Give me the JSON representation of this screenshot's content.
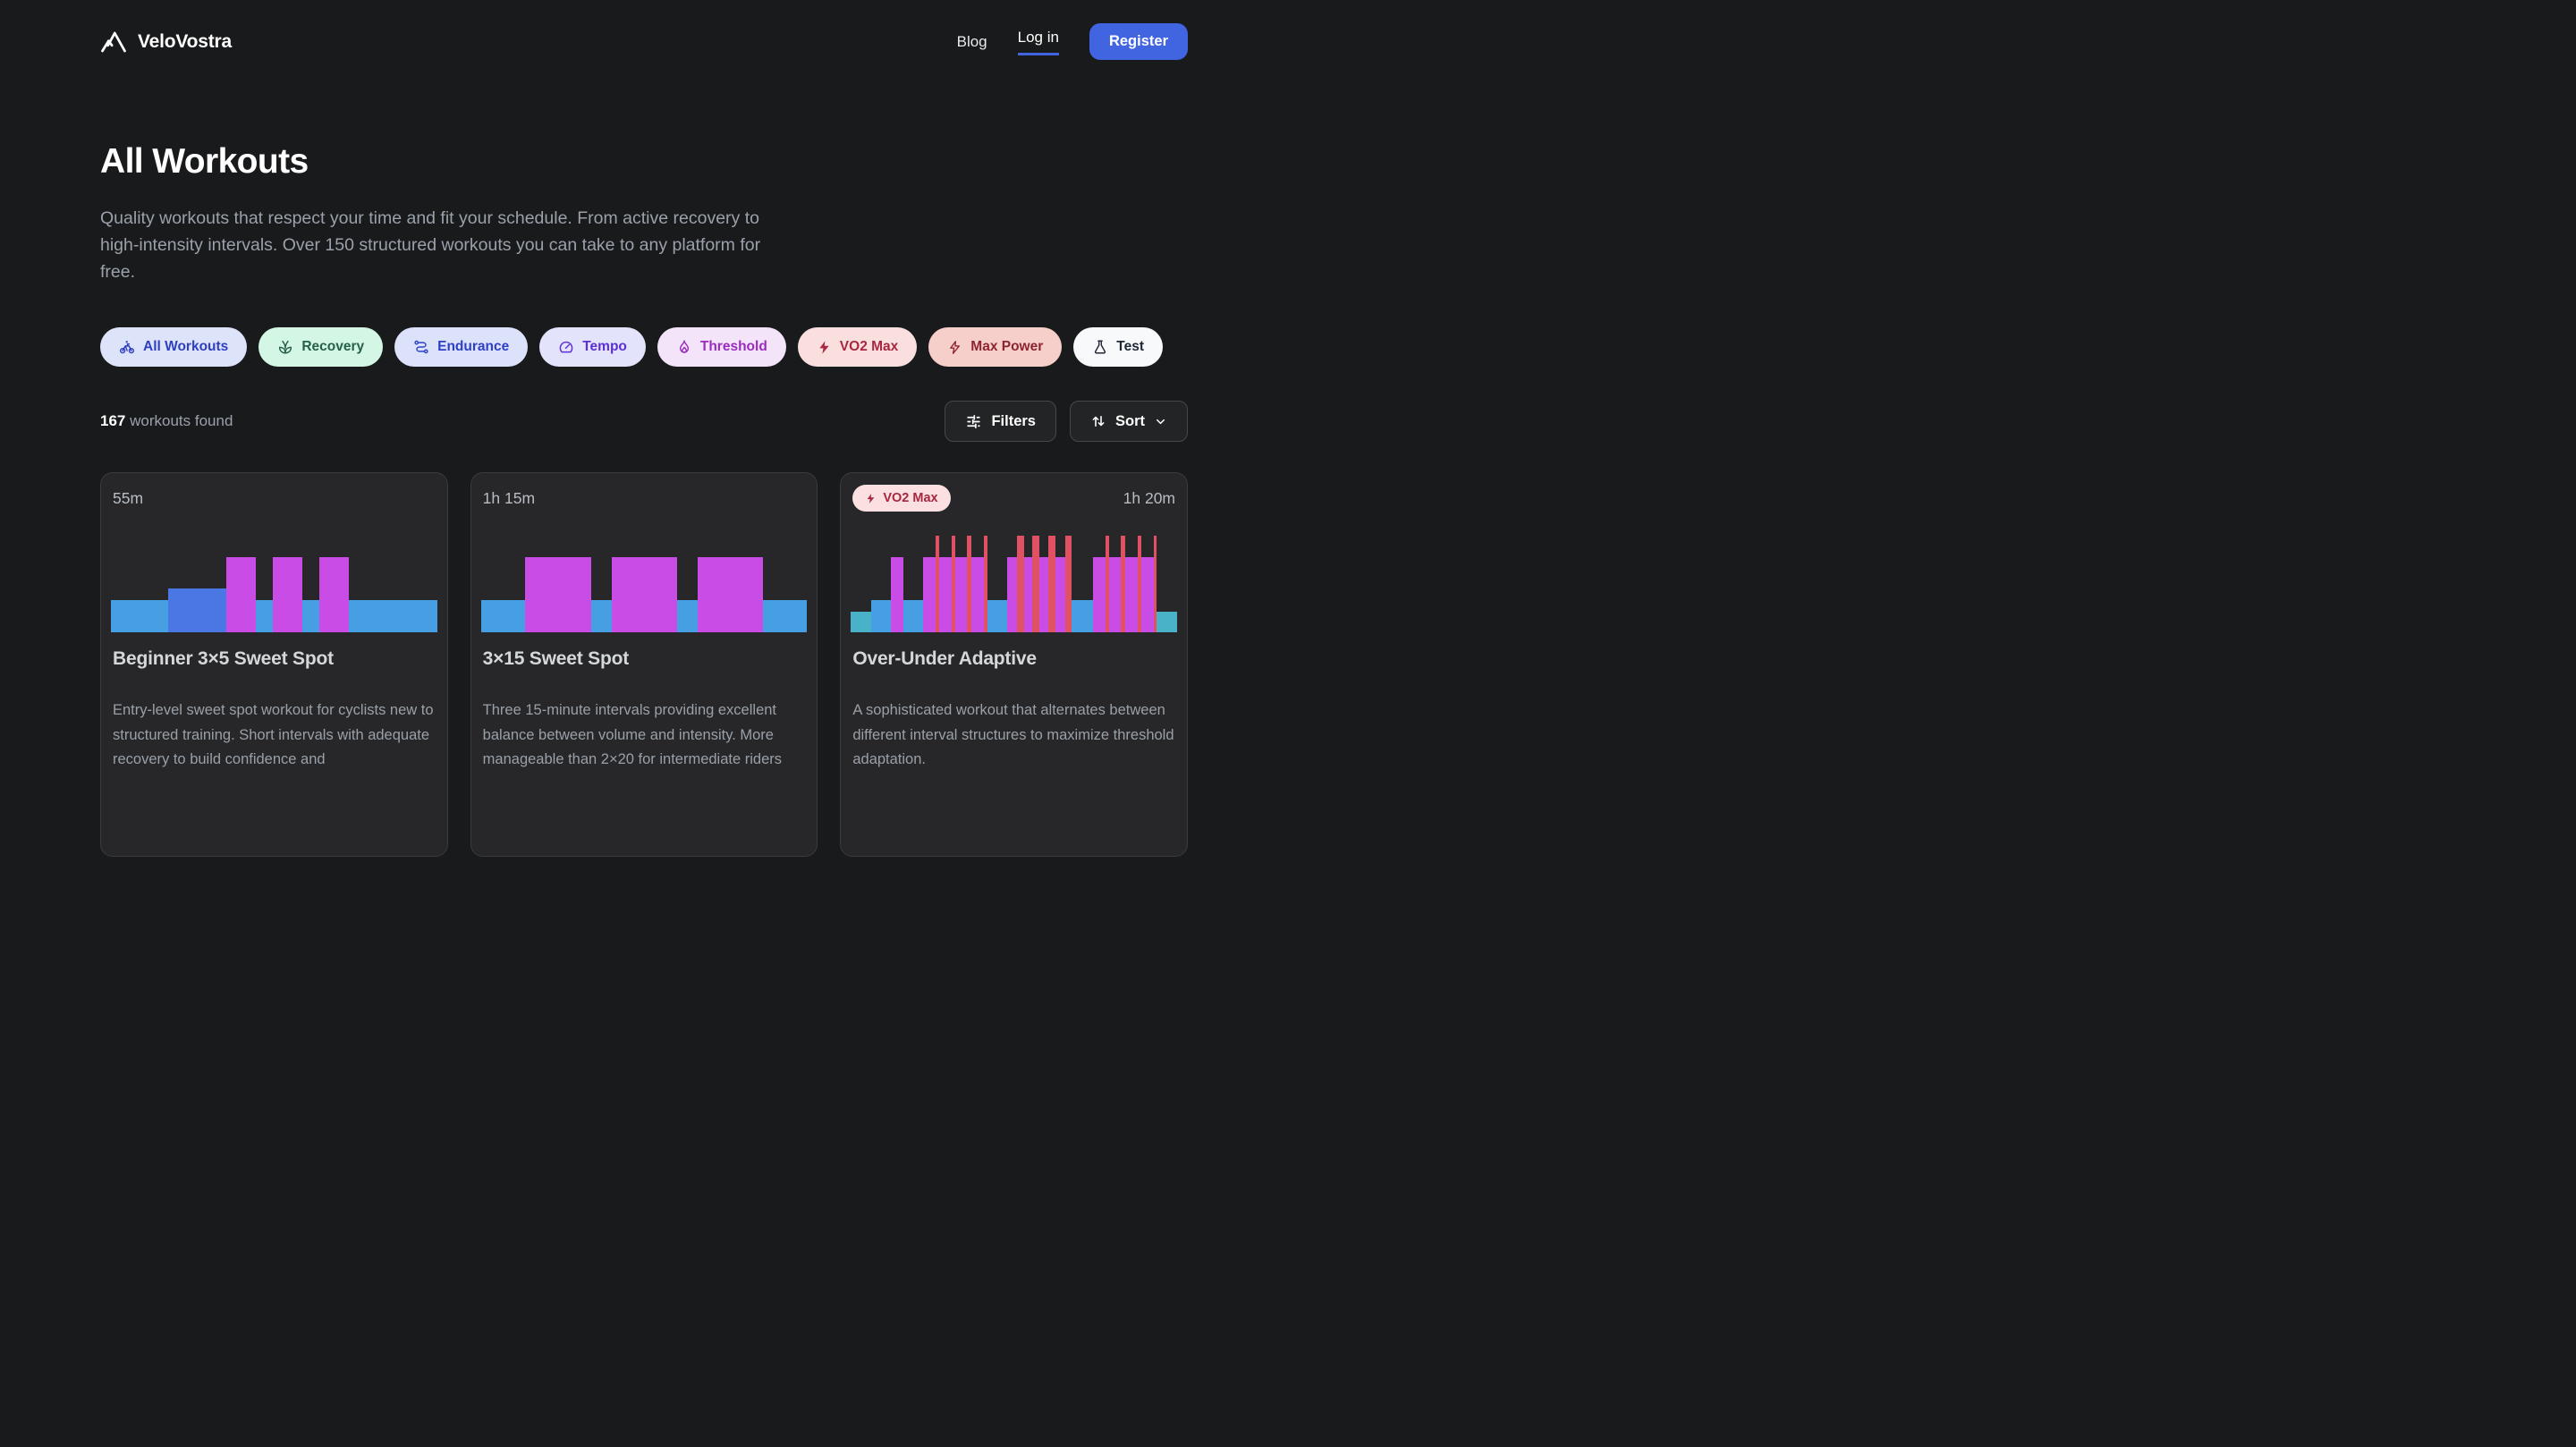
{
  "nav": {
    "brand": "VeloVostra",
    "links": [
      {
        "id": "blog",
        "label": "Blog",
        "active": false
      },
      {
        "id": "login",
        "label": "Log in",
        "active": true
      }
    ],
    "register_label": "Register"
  },
  "header": {
    "title": "All Workouts",
    "subtitle": "Quality workouts that respect your time and fit your schedule. From active recovery to high-intensity intervals. Over 150 structured workouts you can take to any platform for free."
  },
  "filter_pills": [
    {
      "id": "all-workouts",
      "label": "All Workouts",
      "icon": "bike",
      "bg": "#dde4f9",
      "fg": "#2e3fc0",
      "active": true
    },
    {
      "id": "recovery",
      "label": "Recovery",
      "icon": "leaf",
      "bg": "#d4f6e5",
      "fg": "#26604a",
      "active": false
    },
    {
      "id": "endurance",
      "label": "Endurance",
      "icon": "route",
      "bg": "#dbe2fa",
      "fg": "#2e41c6",
      "active": false
    },
    {
      "id": "tempo",
      "label": "Tempo",
      "icon": "gauge",
      "bg": "#e3e3fb",
      "fg": "#5c2fd4",
      "active": false
    },
    {
      "id": "threshold",
      "label": "Threshold",
      "icon": "flame",
      "bg": "#f3e4fa",
      "fg": "#9a2cbd",
      "active": false
    },
    {
      "id": "vo2-max",
      "label": "VO2 Max",
      "icon": "bolt",
      "bg": "#fadfdf",
      "fg": "#a82742",
      "active": false
    },
    {
      "id": "max-power",
      "label": "Max Power",
      "icon": "bolt-outline",
      "bg": "#f6cfca",
      "fg": "#8d2431",
      "active": false
    },
    {
      "id": "test",
      "label": "Test",
      "icon": "flask",
      "bg": "#f8f9fa",
      "fg": "#1f2835",
      "active": false
    }
  ],
  "results": {
    "count": "167",
    "label": "workouts found",
    "filters_label": "Filters",
    "sort_label": "Sort"
  },
  "zone_colors": {
    "z1": "#49b2c8",
    "z2": "#459fe2",
    "z3": "#4a77e4",
    "ss": "#ca4ce6",
    "vo2": "#e05163"
  },
  "cards": [
    {
      "duration": "55m",
      "badge": null,
      "title": "Beginner 3×5 Sweet Spot",
      "description": "Entry-level sweet spot workout for cyclists new to structured training. Short intervals with adequate recovery to build confidence and",
      "segments": [
        {
          "w": 63,
          "h": 33,
          "z": "z2"
        },
        {
          "w": 64,
          "h": 45,
          "z": "z3"
        },
        {
          "w": 32,
          "h": 78,
          "z": "ss"
        },
        {
          "w": 19,
          "h": 33,
          "z": "z2"
        },
        {
          "w": 32,
          "h": 78,
          "z": "ss"
        },
        {
          "w": 19,
          "h": 33,
          "z": "z2"
        },
        {
          "w": 32,
          "h": 78,
          "z": "ss"
        },
        {
          "w": 97,
          "h": 33,
          "z": "z2"
        }
      ]
    },
    {
      "duration": "1h 15m",
      "badge": null,
      "title": "3×15 Sweet Spot",
      "description": "Three 15-minute intervals providing excellent balance between volume and intensity. More manageable than 2×20 for intermediate riders",
      "segments": [
        {
          "w": 48,
          "h": 33,
          "z": "z2"
        },
        {
          "w": 72,
          "h": 78,
          "z": "ss"
        },
        {
          "w": 23,
          "h": 33,
          "z": "z2"
        },
        {
          "w": 71,
          "h": 78,
          "z": "ss"
        },
        {
          "w": 23,
          "h": 33,
          "z": "z2"
        },
        {
          "w": 71,
          "h": 78,
          "z": "ss"
        },
        {
          "w": 48,
          "h": 33,
          "z": "z2"
        }
      ]
    },
    {
      "duration": "1h 20m",
      "badge": {
        "label": "VO2 Max",
        "icon": "bolt",
        "bg": "#fbdfe1",
        "fg": "#a82740"
      },
      "title": "Over-Under Adaptive",
      "description": "A sophisticated workout that alternates between different interval structures to maximize threshold adaptation.",
      "segments": [
        {
          "w": 22,
          "h": 21,
          "z": "z1"
        },
        {
          "w": 22,
          "h": 33,
          "z": "z2"
        },
        {
          "w": 13,
          "h": 78,
          "z": "ss"
        },
        {
          "w": 22,
          "h": 33,
          "z": "z2"
        },
        {
          "w": 13,
          "h": 78,
          "z": "ss"
        },
        {
          "w": 4,
          "h": 100,
          "z": "vo2"
        },
        {
          "w": 14,
          "h": 78,
          "z": "ss"
        },
        {
          "w": 4,
          "h": 100,
          "z": "vo2"
        },
        {
          "w": 13,
          "h": 78,
          "z": "ss"
        },
        {
          "w": 4,
          "h": 100,
          "z": "vo2"
        },
        {
          "w": 14,
          "h": 78,
          "z": "ss"
        },
        {
          "w": 4,
          "h": 100,
          "z": "vo2"
        },
        {
          "w": 22,
          "h": 33,
          "z": "z2"
        },
        {
          "w": 10,
          "h": 78,
          "z": "ss"
        },
        {
          "w": 8,
          "h": 100,
          "z": "vo2"
        },
        {
          "w": 9,
          "h": 78,
          "z": "ss"
        },
        {
          "w": 8,
          "h": 100,
          "z": "vo2"
        },
        {
          "w": 9,
          "h": 78,
          "z": "ss"
        },
        {
          "w": 8,
          "h": 100,
          "z": "vo2"
        },
        {
          "w": 11,
          "h": 78,
          "z": "ss"
        },
        {
          "w": 7,
          "h": 100,
          "z": "vo2"
        },
        {
          "w": 23,
          "h": 33,
          "z": "z2"
        },
        {
          "w": 14,
          "h": 78,
          "z": "ss"
        },
        {
          "w": 4,
          "h": 100,
          "z": "vo2"
        },
        {
          "w": 13,
          "h": 78,
          "z": "ss"
        },
        {
          "w": 4,
          "h": 100,
          "z": "vo2"
        },
        {
          "w": 14,
          "h": 78,
          "z": "ss"
        },
        {
          "w": 4,
          "h": 100,
          "z": "vo2"
        },
        {
          "w": 14,
          "h": 78,
          "z": "ss"
        },
        {
          "w": 3,
          "h": 100,
          "z": "vo2"
        },
        {
          "w": 22,
          "h": 21,
          "z": "z1"
        }
      ]
    }
  ]
}
